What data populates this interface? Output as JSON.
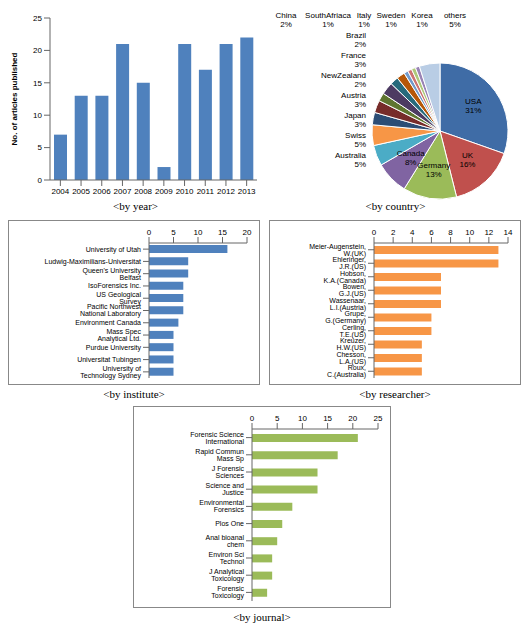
{
  "chart_data": [
    {
      "type": "bar",
      "title": "<by year>",
      "y_label": "No. of articles published",
      "categories": [
        "2004",
        "2005",
        "2006",
        "2007",
        "2008",
        "2009",
        "2010",
        "2011",
        "2012",
        "2013"
      ],
      "values": [
        7,
        13,
        13,
        21,
        15,
        2,
        21,
        17,
        21,
        22
      ],
      "color": "#4f81bd",
      "ylim": [
        0,
        25
      ],
      "yticks": [
        0,
        5,
        10,
        15,
        20,
        25
      ],
      "grid": false
    },
    {
      "type": "pie",
      "title": "<by country>",
      "categories": [
        "USA",
        "UK",
        "Germany",
        "Canada",
        "Australia",
        "Swiss",
        "Japan",
        "Austria",
        "NewZealand",
        "France",
        "Brazil",
        "China",
        "SouthAfriaca",
        "Italy",
        "Sweden",
        "Korea",
        "others"
      ],
      "values": [
        31,
        16,
        13,
        8,
        5,
        5,
        3,
        3,
        2,
        3,
        2,
        2,
        1,
        1,
        1,
        1,
        5
      ],
      "value_labels": [
        "31%",
        "16%",
        "13%",
        "8%",
        "5%",
        "5%",
        "3%",
        "3%",
        "2%",
        "3%",
        "2%",
        "2%",
        "1%",
        "1%",
        "1%",
        "1%",
        "5%"
      ],
      "colors": [
        "#3f6ca6",
        "#c0504d",
        "#9bbb59",
        "#8064a2",
        "#4bacc6",
        "#f79646",
        "#2c4d75",
        "#772c2a",
        "#5f7530",
        "#4d3b62",
        "#276a7c",
        "#b65708",
        "#729aca",
        "#cd7371",
        "#afc97a",
        "#9983b5",
        "#b9cde5"
      ],
      "data_labels": true
    },
    {
      "type": "bar",
      "title": "<by institute>",
      "orientation": "horizontal",
      "categories": [
        "University of Utah",
        "Ludwig-Maximilians-Universitat",
        "Queen's University Belfast",
        "IsoForensics Inc.",
        "US Geological Survey",
        "Pacific Northwest National Laboratory",
        "Environment Canada",
        "Mass Spec Analytical Ltd.",
        "Purdue University",
        "Universitat Tubingen",
        "University of Technology Sydney"
      ],
      "values": [
        16,
        8,
        8,
        7,
        7,
        7,
        6,
        5,
        5,
        5,
        5
      ],
      "color": "#4f81bd",
      "xlim": [
        0,
        20
      ],
      "xticks": [
        0,
        5,
        10,
        15,
        20
      ],
      "grid": false
    },
    {
      "type": "bar",
      "title": "<by researcher>",
      "orientation": "horizontal",
      "categories": [
        "Meier-Augenstein, W.(UK)",
        "Ehleringer, J.R.(US)",
        "Hobson, K.A.(Canada)",
        "Bowen, G.J.(US)",
        "Wassenaar, L.I.(Austria)",
        "Grupe, G.(Germany)",
        "Cerling, T.E.(US)",
        "Kreuzer, H.W.(US)",
        "Chesson, L.A.(US)",
        "Roux, C.(Australia)"
      ],
      "values": [
        13,
        13,
        7,
        7,
        7,
        6,
        6,
        5,
        5,
        5
      ],
      "color": "#f79646",
      "xlim": [
        0,
        14
      ],
      "xticks": [
        0,
        2,
        4,
        6,
        8,
        10,
        12,
        14
      ],
      "grid": false
    },
    {
      "type": "bar",
      "title": "<by journal>",
      "orientation": "horizontal",
      "categories": [
        "Forensic Science International",
        "Rapid Commun Mass Sp",
        "J Forensic Sciences",
        "Science and Justice",
        "Environmental Forensics",
        "Plos One",
        "Anal bioanal chem",
        "Environ Sci Technol",
        "J Analytical Toxicology",
        "Forensic Toxicology"
      ],
      "values": [
        21,
        17,
        13,
        13,
        8,
        6,
        5,
        4,
        4,
        3
      ],
      "color": "#9bbb59",
      "xlim": [
        0,
        25
      ],
      "xticks": [
        0,
        5,
        10,
        15,
        20,
        25
      ],
      "grid": false
    }
  ]
}
